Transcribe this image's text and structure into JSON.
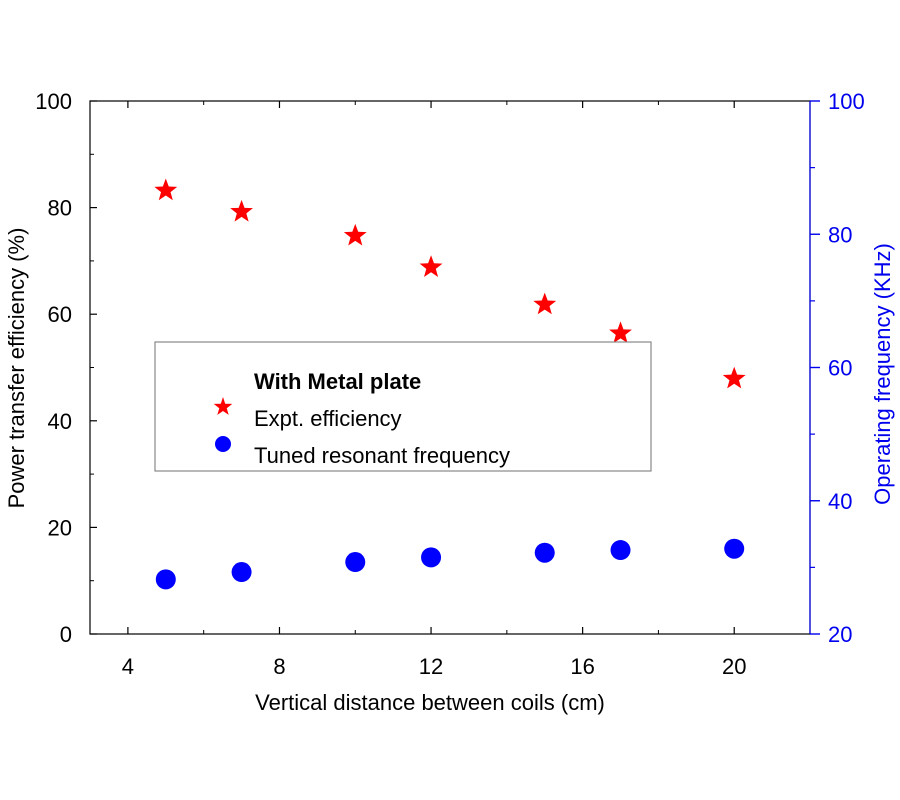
{
  "chart_data": {
    "type": "scatter",
    "title": "",
    "xlabel": "Vertical distance between coils (cm)",
    "ylabel_left": "Power transfer efficiency (%)",
    "ylabel_right": "Operating frequency (KHz)",
    "xlim": [
      3,
      22
    ],
    "ylim_left": [
      0,
      100
    ],
    "ylim_right": [
      20,
      100
    ],
    "x_ticks": [
      4,
      8,
      12,
      16,
      20
    ],
    "y_ticks_left": [
      0,
      20,
      40,
      60,
      80,
      100
    ],
    "y_ticks_right": [
      20,
      40,
      60,
      80,
      100
    ],
    "grid": false,
    "legend": {
      "title": "With Metal plate",
      "placement": "center-left"
    },
    "series": [
      {
        "name": "Expt. efficiency",
        "axis": "left",
        "marker": "star",
        "color": "#ff0000",
        "x": [
          5,
          7,
          10,
          12,
          15,
          17,
          20
        ],
        "y": [
          83.2,
          79.2,
          74.7,
          68.8,
          61.8,
          56.4,
          47.9
        ]
      },
      {
        "name": "Tuned resonant frequency",
        "axis": "right",
        "marker": "circle",
        "color": "#0000ff",
        "x": [
          5,
          7,
          10,
          12,
          15,
          17,
          20
        ],
        "y": [
          28.2,
          29.3,
          30.8,
          31.5,
          32.2,
          32.6,
          32.8
        ]
      }
    ],
    "colors": {
      "left_axis": "#000000",
      "right_axis": "#0000ee"
    }
  }
}
